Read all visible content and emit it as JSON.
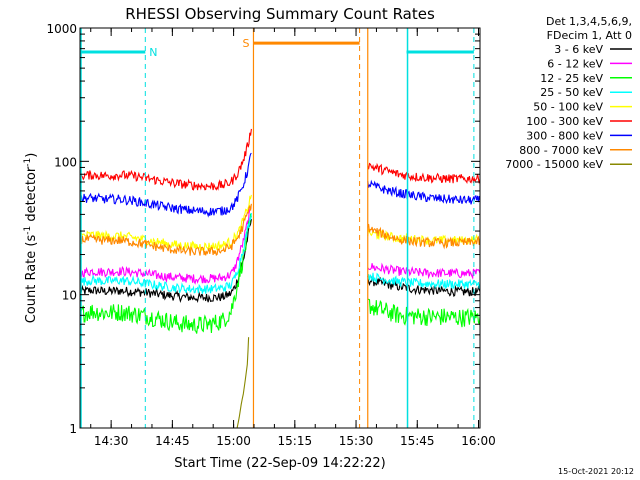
{
  "chart_data": {
    "type": "line",
    "title": "RHESSI Observing Summary Count Rates",
    "xlabel": "Start Time (22-Sep-09 14:22:22)",
    "ylabel_main": "Count Rate (s",
    "ylabel_sup1": "-1",
    "ylabel_mid": " detector",
    "ylabel_sup2": "-1",
    "ylabel_end": ")",
    "y_scale": "log",
    "ylim": [
      1,
      1000
    ],
    "xlim_minutes": [
      0,
      98
    ],
    "x_ticks": [
      {
        "m": 7.63,
        "label": "14:30"
      },
      {
        "m": 22.63,
        "label": "14:45"
      },
      {
        "m": 37.63,
        "label": "15:00"
      },
      {
        "m": 52.63,
        "label": "15:15"
      },
      {
        "m": 67.63,
        "label": "15:30"
      },
      {
        "m": 82.63,
        "label": "15:45"
      },
      {
        "m": 97.63,
        "label": "16:00"
      }
    ],
    "y_ticks": [
      {
        "v": 1,
        "label": "1"
      },
      {
        "v": 10,
        "label": "10"
      },
      {
        "v": 100,
        "label": "100"
      },
      {
        "v": 1000,
        "label": "1000"
      }
    ],
    "legend_header": [
      "Det 1,3,4,5,6,9,",
      "FDecim 1, Att 0"
    ],
    "series": [
      {
        "name": "3 - 6 keV",
        "color": "#000000",
        "segments": [
          {
            "x": [
              0,
              3,
              6,
              10,
              14,
              17,
              20,
              24,
              28,
              32,
              35,
              37,
              38,
              39,
              40,
              41,
              42
            ],
            "y": [
              10.5,
              10.8,
              10.6,
              10.7,
              10.5,
              10.3,
              10.0,
              9.7,
              9.5,
              9.5,
              9.6,
              10.2,
              11.5,
              14,
              18,
              26,
              37
            ]
          },
          {
            "x": [
              70.5,
              72,
              75,
              78,
              82,
              86,
              90,
              94,
              98
            ],
            "y": [
              13,
              12.5,
              12,
              11.5,
              11,
              10.8,
              10.6,
              10.5,
              10.5
            ]
          }
        ]
      },
      {
        "name": "6 - 12 keV",
        "color": "#ff00ff",
        "segments": [
          {
            "x": [
              0,
              3,
              6,
              10,
              14,
              17,
              20,
              24,
              28,
              32,
              35,
              37,
              38,
              39,
              40,
              41,
              42
            ],
            "y": [
              14.5,
              15,
              14.8,
              15,
              14.6,
              14.2,
              13.8,
              13.4,
              13.2,
              13.2,
              13.4,
              14.2,
              16,
              20,
              25,
              34,
              45
            ]
          },
          {
            "x": [
              70.5,
              72,
              75,
              78,
              82,
              86,
              90,
              94,
              98
            ],
            "y": [
              16.5,
              16,
              15.5,
              15,
              14.7,
              14.5,
              14.5,
              14.4,
              14.5
            ]
          }
        ]
      },
      {
        "name": "12 - 25 keV",
        "color": "#00ff00",
        "segments": [
          {
            "x": [
              0,
              3,
              6,
              10,
              14,
              17,
              20,
              24,
              28,
              32,
              35,
              37,
              38,
              39,
              40,
              41,
              42
            ],
            "y": [
              7.2,
              7.5,
              7.3,
              7.4,
              7.1,
              6.9,
              6.5,
              6.1,
              5.9,
              6.0,
              6.4,
              7.5,
              10,
              14,
              19,
              27,
              38
            ]
          },
          {
            "x": [
              70.5,
              72,
              75,
              78,
              82,
              86,
              90,
              94,
              98
            ],
            "y": [
              8.5,
              8,
              7.5,
              7,
              6.9,
              6.8,
              6.8,
              6.7,
              6.8
            ]
          }
        ]
      },
      {
        "name": "25 - 50 keV",
        "color": "#00ffff",
        "segments": [
          {
            "x": [
              0,
              3,
              6,
              10,
              14,
              17,
              20,
              24,
              28,
              32,
              35,
              37,
              38,
              39,
              40,
              41,
              42
            ],
            "y": [
              12.5,
              12.8,
              12.6,
              12.8,
              12.4,
              12.0,
              11.6,
              11.2,
              11.0,
              11.0,
              11.2,
              11.8,
              13.5,
              17,
              22,
              30,
              41
            ]
          },
          {
            "x": [
              70.5,
              72,
              75,
              78,
              82,
              86,
              90,
              94,
              98
            ],
            "y": [
              14,
              13.5,
              13,
              12.5,
              12.2,
              12.1,
              12,
              12,
              12
            ]
          }
        ]
      },
      {
        "name": "50 - 100 keV",
        "color": "#ffff00",
        "segments": [
          {
            "x": [
              0,
              3,
              6,
              10,
              14,
              17,
              20,
              24,
              28,
              32,
              35,
              37,
              38,
              39,
              40,
              41,
              42
            ],
            "y": [
              27.5,
              28,
              27.5,
              27.5,
              26.5,
              25.5,
              24.5,
              23.5,
              23,
              23,
              23.5,
              25,
              27,
              30,
              36,
              44,
              56
            ]
          },
          {
            "x": [
              70.5,
              72,
              75,
              78,
              82,
              86,
              90,
              94,
              98
            ],
            "y": [
              29,
              28.5,
              27.5,
              26.5,
              26,
              25.5,
              25.5,
              25.5,
              26
            ]
          }
        ]
      },
      {
        "name": "100 - 300 keV",
        "color": "#ff0000",
        "segments": [
          {
            "x": [
              0,
              3,
              6,
              10,
              14,
              17,
              20,
              24,
              28,
              32,
              35,
              37,
              38,
              39,
              40,
              41,
              42
            ],
            "y": [
              78,
              79,
              78,
              79,
              77,
              74,
              71,
              68,
              66,
              65,
              66,
              70,
              76,
              86,
              102,
              128,
              175
            ]
          },
          {
            "x": [
              70.5,
              72,
              75,
              78,
              82,
              86,
              90,
              94,
              98
            ],
            "y": [
              95,
              90,
              85,
              80,
              77,
              75,
              74,
              74,
              74
            ]
          }
        ]
      },
      {
        "name": "300 - 800 keV",
        "color": "#0000ff",
        "segments": [
          {
            "x": [
              0,
              3,
              6,
              10,
              14,
              17,
              20,
              24,
              28,
              32,
              35,
              37,
              38,
              39,
              40,
              41,
              42
            ],
            "y": [
              53,
              53,
              52,
              52,
              50,
              48,
              46,
              44,
              42.5,
              42,
              42.5,
              45,
              49,
              56,
              67,
              84,
              115
            ]
          },
          {
            "x": [
              70.5,
              72,
              75,
              78,
              82,
              86,
              90,
              94,
              98
            ],
            "y": [
              68,
              65,
              61,
              58,
              55,
              53,
              52,
              51,
              51
            ]
          }
        ]
      },
      {
        "name": "800 - 7000 keV",
        "color": "#ff8800",
        "segments": [
          {
            "x": [
              0,
              3,
              6,
              10,
              14,
              17,
              20,
              24,
              28,
              32,
              35,
              37,
              38,
              39,
              40,
              41,
              42
            ],
            "y": [
              26,
              26,
              25.5,
              25.5,
              24.5,
              23.5,
              22.5,
              21.5,
              21,
              21,
              21.5,
              23,
              25,
              28,
              33,
              40,
              48
            ]
          },
          {
            "x": [
              70.5,
              72,
              75,
              78,
              82,
              86,
              90,
              94,
              98
            ],
            "y": [
              32,
              30,
              28,
              26,
              25,
              24.5,
              24.5,
              24.5,
              25
            ]
          }
        ]
      },
      {
        "name": "7000 - 15000 keV",
        "color": "#888800",
        "segments": [
          {
            "x": [
              38.5,
              39,
              39.5,
              40,
              40.5,
              41,
              41.3
            ],
            "y": [
              1,
              1.2,
              1.5,
              1.8,
              2.3,
              3,
              4.8
            ]
          }
        ]
      }
    ],
    "flag_bars": [
      {
        "label": "N",
        "color": "#00e0e0",
        "x1": 0,
        "x2": 16,
        "y": 660
      },
      {
        "label": "",
        "color": "#00e0e0",
        "x1": 80,
        "x2": 96.5,
        "y": 660
      },
      {
        "label": "S",
        "color": "#ff8800",
        "x1": 42.5,
        "x2": 68.5,
        "y": 770
      }
    ],
    "cyan_lines": [
      0,
      80
    ],
    "cyan_dashed": [
      16,
      96.5
    ],
    "orange_lines": [
      42.5,
      70.5
    ],
    "orange_dashed": [
      68.5
    ],
    "grid": false,
    "legend_position": "right"
  },
  "footer_timestamp": "15-Oct-2021 20:12"
}
